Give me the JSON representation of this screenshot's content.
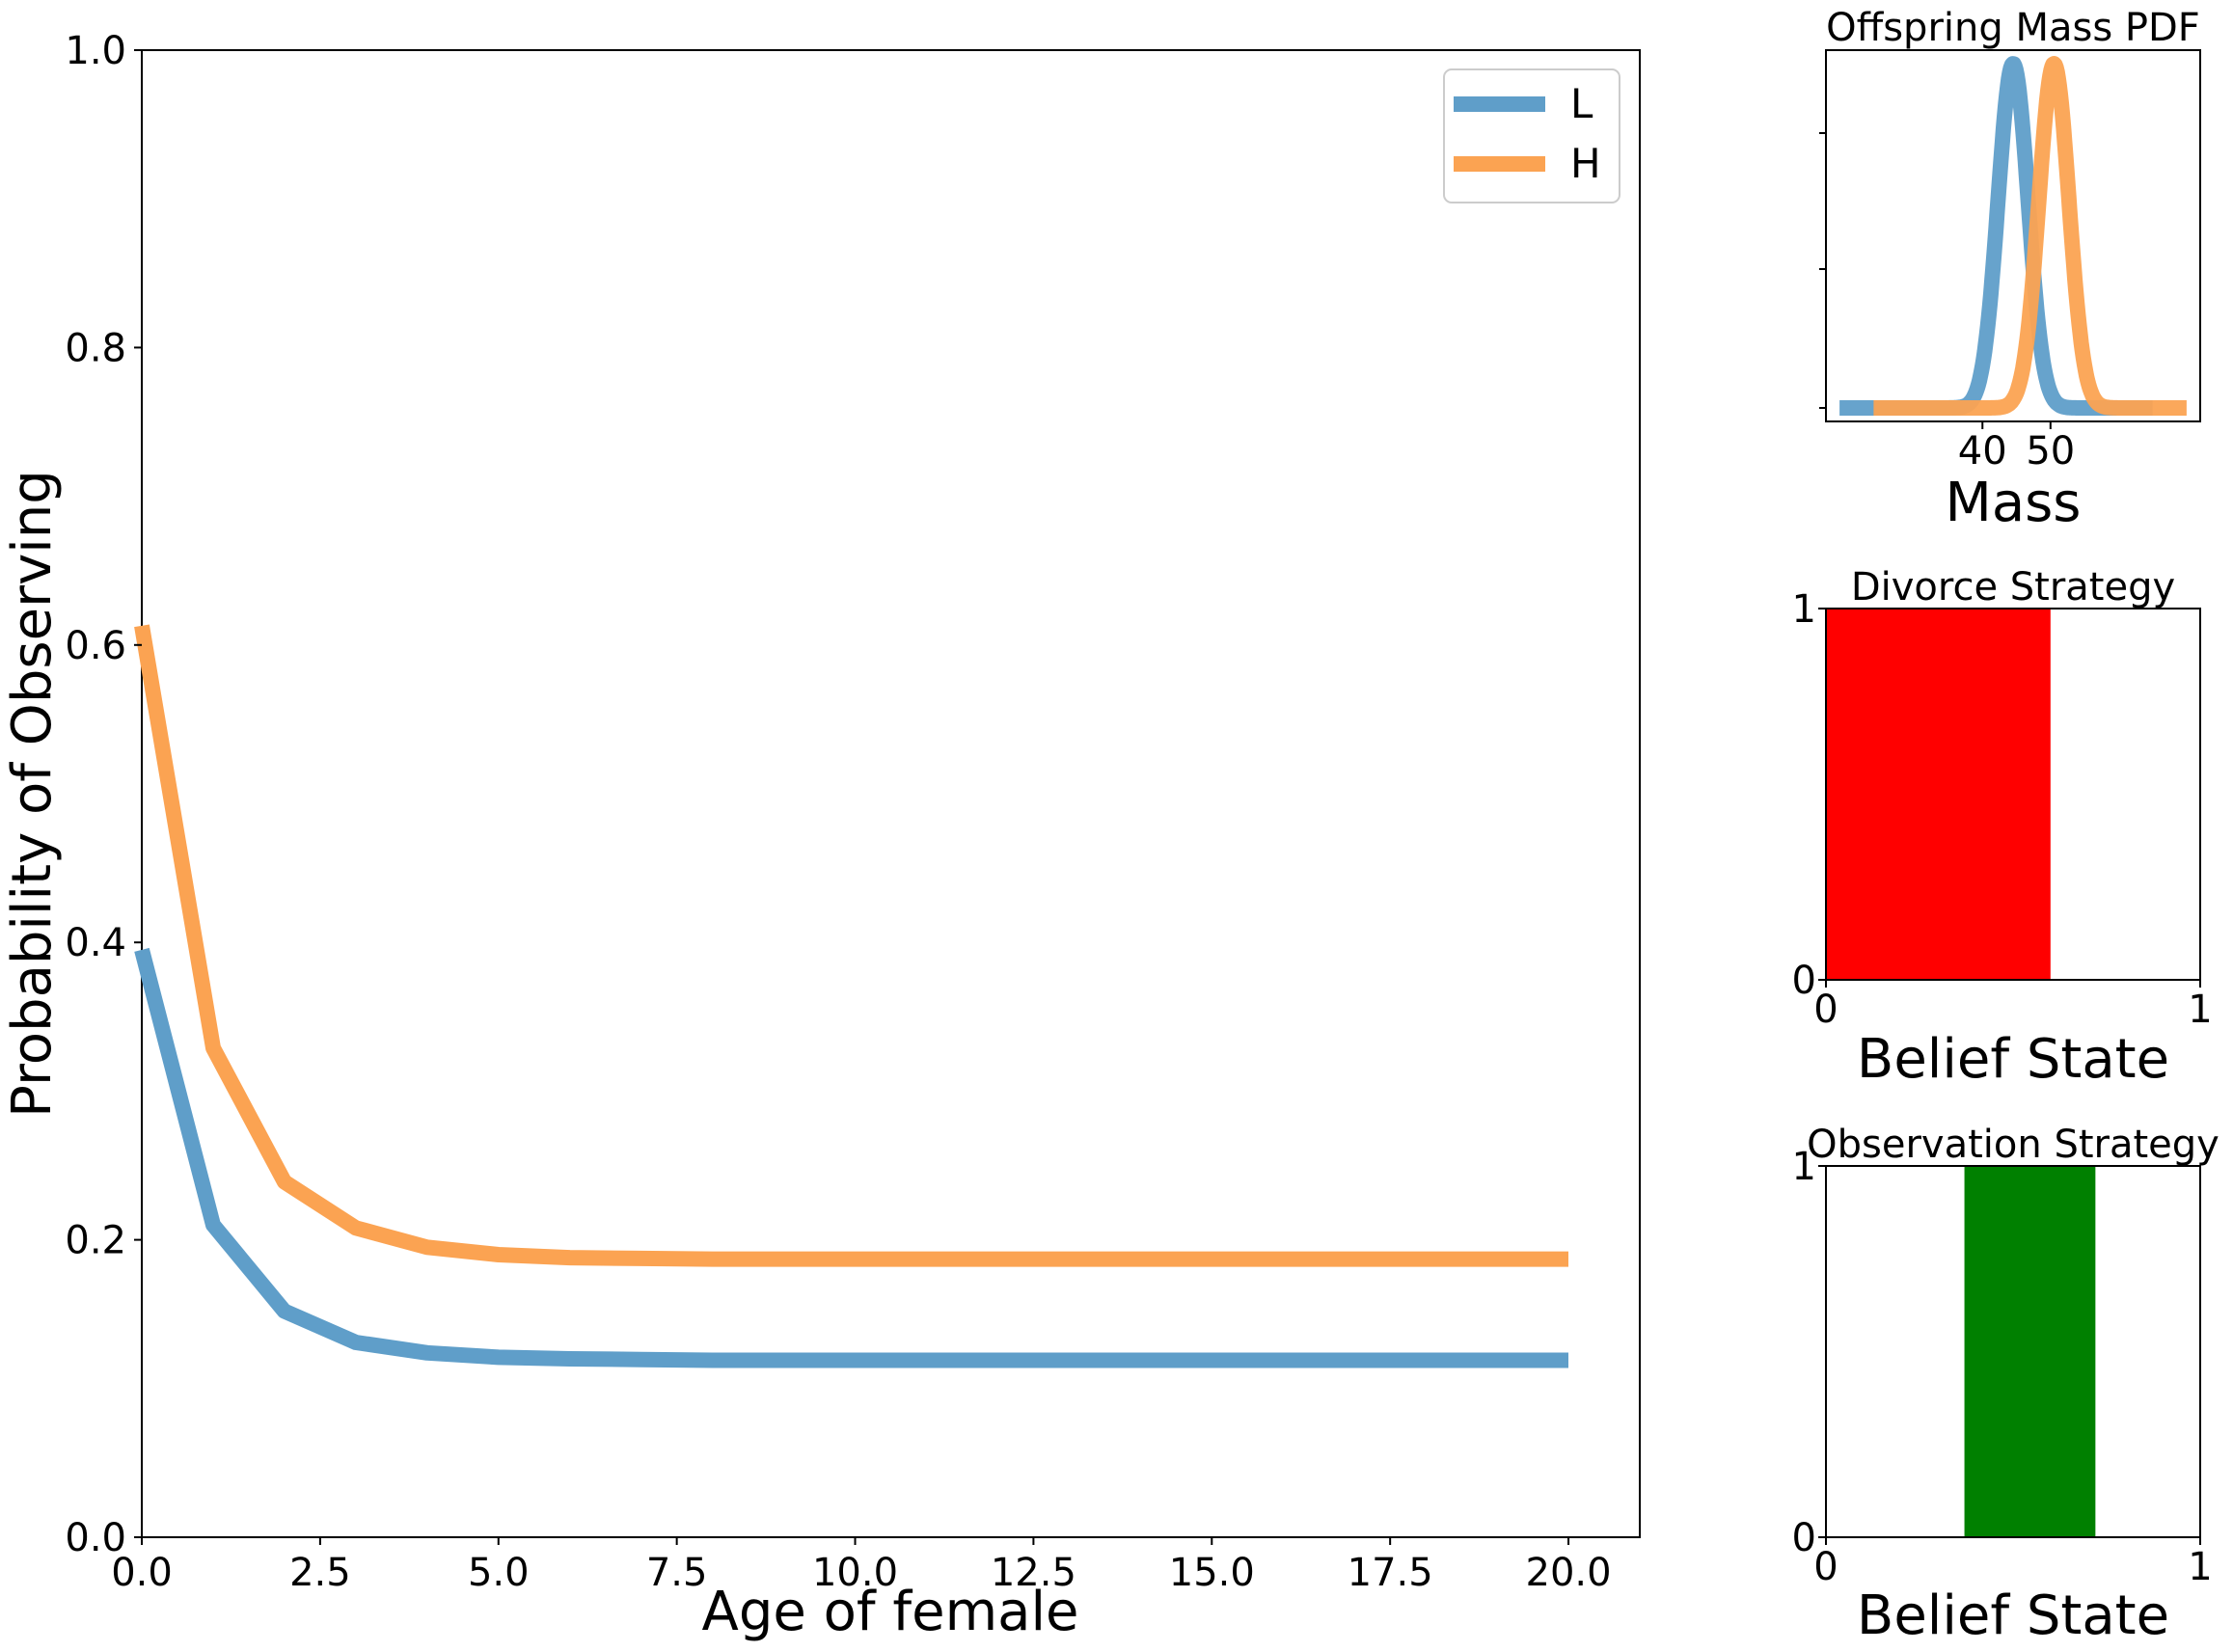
{
  "chart_data": [
    {
      "type": "line",
      "title": "",
      "xlabel": "Age of female",
      "ylabel": "Probability of Observing",
      "xlim": [
        0,
        21
      ],
      "ylim": [
        0,
        1
      ],
      "xticks": [
        "0.0",
        "2.5",
        "5.0",
        "7.5",
        "10.0",
        "12.5",
        "15.0",
        "17.5",
        "20.0"
      ],
      "yticks": [
        "0.0",
        "0.2",
        "0.4",
        "0.6",
        "0.8",
        "1.0"
      ],
      "legend": "top-right",
      "x": [
        0,
        1,
        2,
        3,
        4,
        5,
        6,
        7,
        8,
        9,
        10,
        11,
        12,
        13,
        14,
        15,
        16,
        17,
        18,
        19,
        20
      ],
      "series": [
        {
          "name": "L",
          "color": "#5f9ec9",
          "values": [
            0.395,
            0.21,
            0.152,
            0.131,
            0.124,
            0.121,
            0.12,
            0.1195,
            0.119,
            0.119,
            0.119,
            0.119,
            0.119,
            0.119,
            0.119,
            0.119,
            0.119,
            0.119,
            0.119,
            0.119,
            0.119
          ]
        },
        {
          "name": "H",
          "color": "#fba352",
          "values": [
            0.613,
            0.329,
            0.239,
            0.208,
            0.195,
            0.19,
            0.188,
            0.1875,
            0.187,
            0.187,
            0.187,
            0.187,
            0.187,
            0.187,
            0.187,
            0.187,
            0.187,
            0.187,
            0.187,
            0.187,
            0.187
          ]
        }
      ]
    },
    {
      "type": "line",
      "title": "Offspring Mass PDF",
      "xlabel": "Mass",
      "ylabel": "",
      "xlim": [
        17,
        72
      ],
      "xticks": [
        "40",
        "50"
      ],
      "series": [
        {
          "color": "#5f9ec9",
          "xrange": [
            19,
            65
          ],
          "mean": 44.5,
          "sd": 2.2
        },
        {
          "color": "#fba352",
          "xrange": [
            24,
            70
          ],
          "mean": 50.5,
          "sd": 2.2
        }
      ]
    },
    {
      "type": "bar",
      "title": "Divorce Strategy",
      "xlabel": "Belief State",
      "xlim": [
        0,
        1
      ],
      "ylim": [
        0,
        1
      ],
      "xticks": [
        "0",
        "1"
      ],
      "yticks": [
        "0",
        "1"
      ],
      "color": "#ff0000",
      "range": [
        0,
        0.6
      ]
    },
    {
      "type": "bar",
      "title": "Observation Strategy",
      "xlabel": "Belief State",
      "xlim": [
        0,
        1
      ],
      "ylim": [
        0,
        1
      ],
      "xticks": [
        "0",
        "1"
      ],
      "yticks": [
        "0",
        "1"
      ],
      "color": "#008000",
      "range": [
        0.37,
        0.72
      ]
    }
  ]
}
